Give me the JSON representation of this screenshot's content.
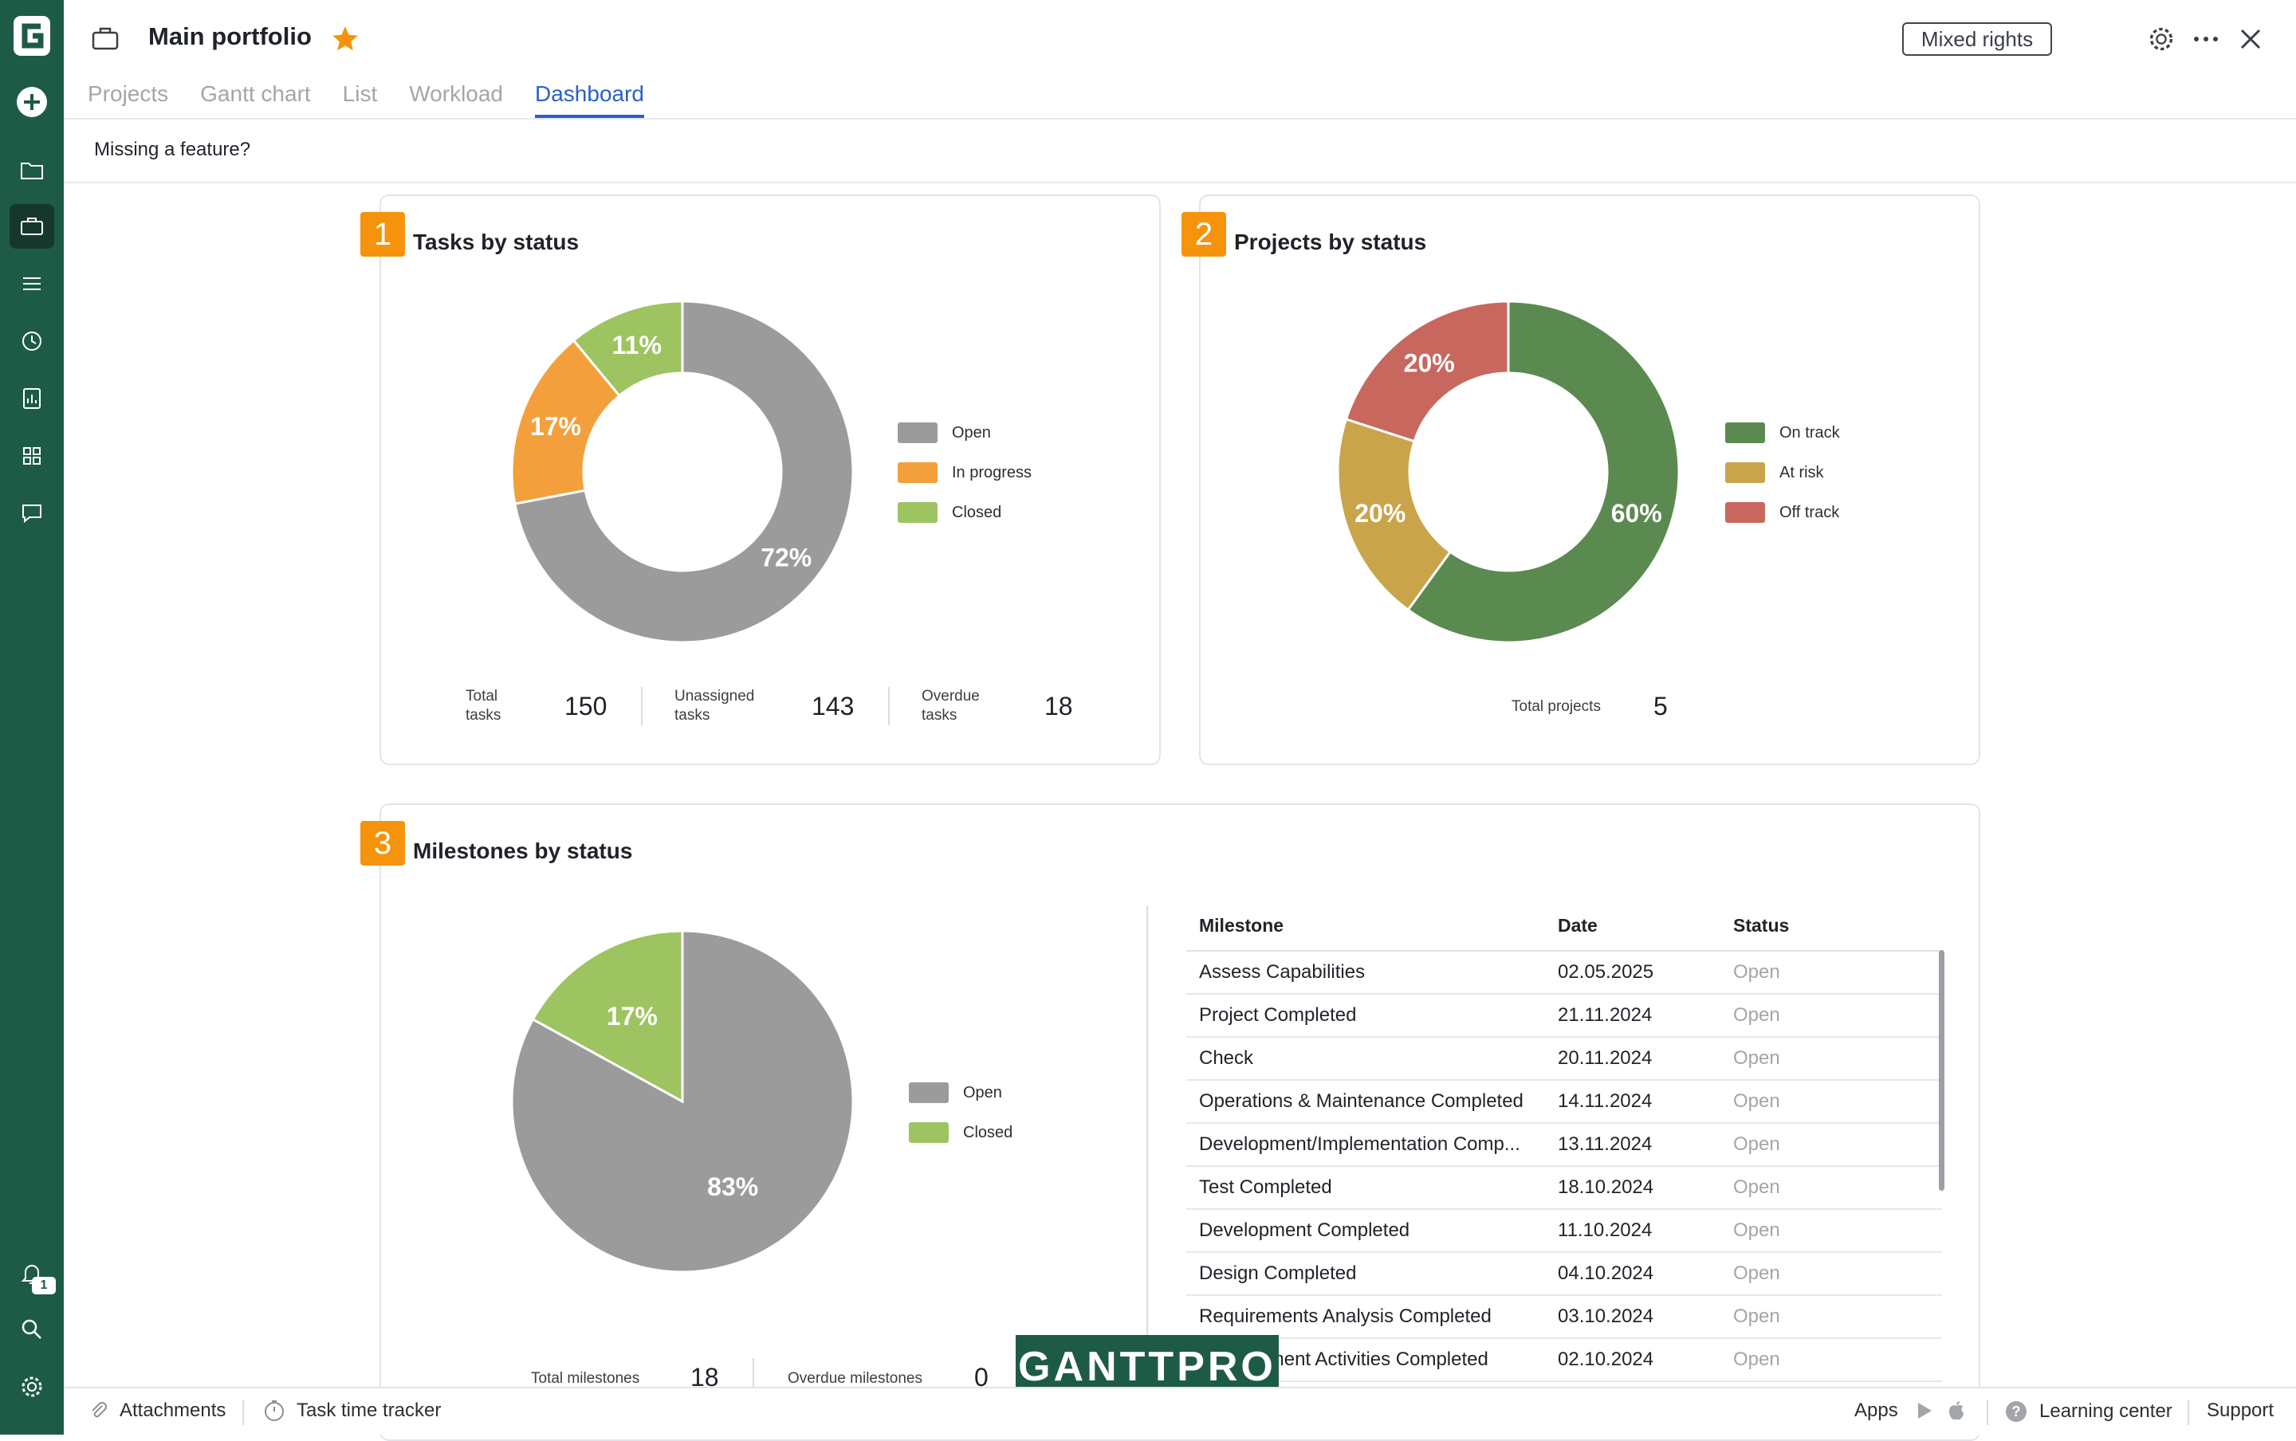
{
  "app": {
    "logo_letter": "G"
  },
  "sidebar": {
    "items": [
      {
        "icon": "add-icon"
      },
      {
        "icon": "folder-icon"
      },
      {
        "icon": "briefcase-icon",
        "active": true
      },
      {
        "icon": "list-icon"
      },
      {
        "icon": "clock-icon"
      },
      {
        "icon": "report-icon"
      },
      {
        "icon": "grid-icon"
      },
      {
        "icon": "chat-icon"
      }
    ],
    "bottom": [
      {
        "icon": "bell-icon",
        "badge": "1"
      },
      {
        "icon": "search-icon"
      },
      {
        "icon": "gear-icon"
      }
    ]
  },
  "header": {
    "title": "Main portfolio",
    "rights_label": "Mixed rights",
    "tabs": [
      {
        "label": "Projects"
      },
      {
        "label": "Gantt chart"
      },
      {
        "label": "List"
      },
      {
        "label": "Workload"
      },
      {
        "label": "Dashboard",
        "active": true
      }
    ]
  },
  "banner": {
    "text": "Missing a feature?"
  },
  "cards": {
    "tasks": {
      "number": "1",
      "title": "Tasks by status",
      "stats": [
        {
          "label_1": "Total",
          "label_2": "tasks",
          "value": "150"
        },
        {
          "label_1": "Unassigned",
          "label_2": "tasks",
          "value": "143"
        },
        {
          "label_1": "Overdue",
          "label_2": "tasks",
          "value": "18"
        }
      ]
    },
    "projects": {
      "number": "2",
      "title": "Projects by status",
      "stats": [
        {
          "label": "Total projects",
          "value": "5"
        }
      ]
    },
    "milestones": {
      "number": "3",
      "title": "Milestones by status",
      "stats": [
        {
          "label": "Total milestones",
          "value": "18"
        },
        {
          "label": "Overdue milestones",
          "value": "0"
        }
      ],
      "table": {
        "headers": [
          "Milestone",
          "Date",
          "Status"
        ],
        "rows": [
          {
            "name": "Assess Capabilities",
            "date": "02.05.2025",
            "status": "Open"
          },
          {
            "name": "Project Completed",
            "date": "21.11.2024",
            "status": "Open"
          },
          {
            "name": "Check",
            "date": "20.11.2024",
            "status": "Open"
          },
          {
            "name": "Operations & Maintenance Completed",
            "date": "14.11.2024",
            "status": "Open"
          },
          {
            "name": "Development/Implementation Comp...",
            "date": "13.11.2024",
            "status": "Open"
          },
          {
            "name": "Test Completed",
            "date": "18.10.2024",
            "status": "Open"
          },
          {
            "name": "Development Completed",
            "date": "11.10.2024",
            "status": "Open"
          },
          {
            "name": "Design Completed",
            "date": "04.10.2024",
            "status": "Open"
          },
          {
            "name": "Requirements Analysis Completed",
            "date": "03.10.2024",
            "status": "Open"
          },
          {
            "name": "Management Activities Completed",
            "date": "02.10.2024",
            "status": "Open"
          }
        ]
      }
    }
  },
  "chart_data": [
    {
      "type": "pie",
      "variant": "donut",
      "categories": [
        "Open",
        "In progress",
        "Closed"
      ],
      "values": [
        72,
        17,
        11
      ],
      "labels": [
        "72%",
        "17%",
        "11%"
      ],
      "colors": [
        "#9b9b9b",
        "#f3a03c",
        "#9dc460"
      ],
      "title": "Tasks by status"
    },
    {
      "type": "pie",
      "variant": "donut",
      "categories": [
        "On track",
        "At risk",
        "Off track"
      ],
      "values": [
        60,
        20,
        20
      ],
      "labels": [
        "60%",
        "20%",
        "20%"
      ],
      "colors": [
        "#5b8a50",
        "#c9a44b",
        "#c8675e"
      ],
      "title": "Projects by status"
    },
    {
      "type": "pie",
      "categories": [
        "Open",
        "Closed"
      ],
      "values": [
        83,
        17
      ],
      "labels": [
        "83%",
        "17%"
      ],
      "colors": [
        "#9b9b9b",
        "#9dc460"
      ],
      "title": "Milestones by status"
    }
  ],
  "watermark": "GANTTPRO",
  "bottombar": {
    "attachments": "Attachments",
    "time_tracker": "Task time tracker",
    "apps": "Apps",
    "learning": "Learning center",
    "support": "Support"
  }
}
